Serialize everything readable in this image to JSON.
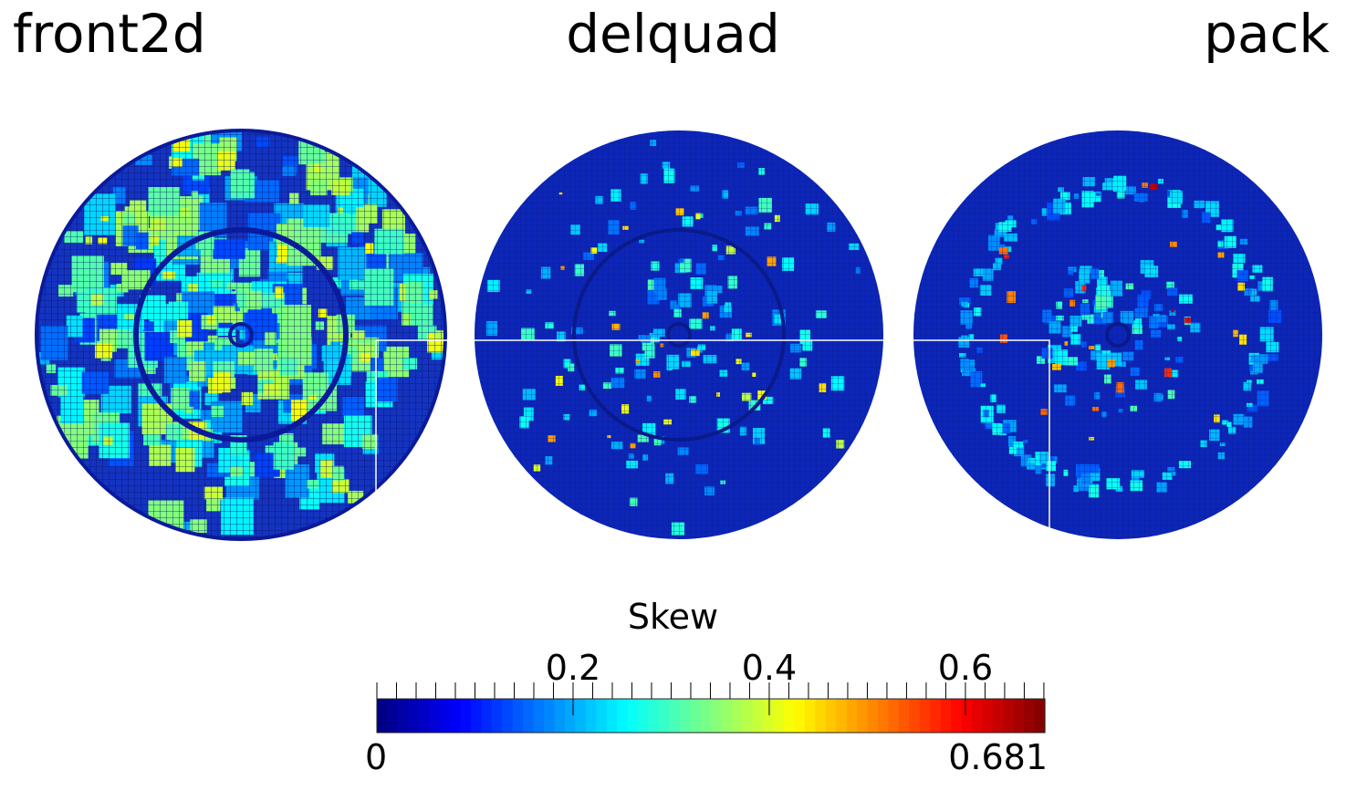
{
  "panels": [
    {
      "title": "front2d"
    },
    {
      "title": "delquad"
    },
    {
      "title": "pack"
    }
  ],
  "colorbar": {
    "title": "Skew",
    "min_label": "0",
    "max_label": "0.681",
    "range": [
      0,
      0.681
    ],
    "major_ticks": [
      {
        "value": 0.2,
        "label": "0.2"
      },
      {
        "value": 0.4,
        "label": "0.4"
      },
      {
        "value": 0.6,
        "label": "0.6"
      }
    ],
    "minor_tick_step": 0.02,
    "colormap": "jet"
  },
  "colors": {
    "low": "#0000ff",
    "mid": "#00ff00",
    "high": "#ff0000",
    "mesh_base": "#0a1fb4"
  }
}
